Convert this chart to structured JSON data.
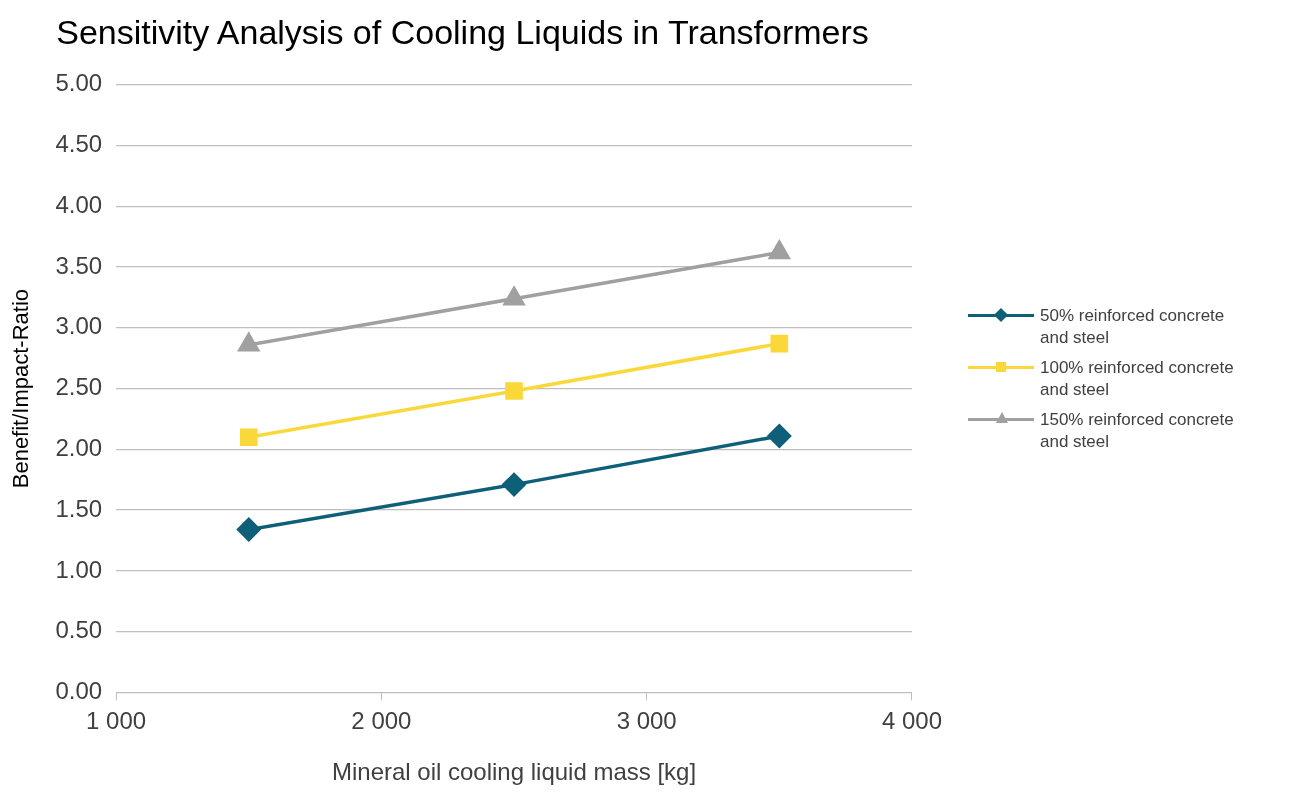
{
  "chart_data": {
    "type": "line",
    "title": "Sensitivity Analysis of Cooling Liquids in Transformers",
    "xlabel": "Mineral oil cooling liquid mass [kg]",
    "ylabel": "Benefit/Impact-Ratio",
    "x": [
      1500,
      2500,
      3500
    ],
    "series": [
      {
        "name": "50% reinforced concrete and steel",
        "color": "#0e5f78",
        "marker": "diamond",
        "values": [
          1.34,
          1.71,
          2.11
        ]
      },
      {
        "name": "100% reinforced concrete and steel",
        "color": "#fbd83a",
        "marker": "square",
        "values": [
          2.1,
          2.48,
          2.87
        ]
      },
      {
        "name": "150% reinforced concrete and steel",
        "color": "#a0a0a0",
        "marker": "triangle",
        "values": [
          2.86,
          3.24,
          3.62
        ]
      }
    ],
    "xlim": [
      1000,
      4000
    ],
    "xticks": [
      {
        "value": 1000,
        "label": "1 000"
      },
      {
        "value": 2000,
        "label": "2 000"
      },
      {
        "value": 3000,
        "label": "3 000"
      },
      {
        "value": 4000,
        "label": "4 000"
      }
    ],
    "ylim": [
      0,
      5
    ],
    "yticks": [
      {
        "value": 0,
        "label": "0.00"
      },
      {
        "value": 0.5,
        "label": "0.50"
      },
      {
        "value": 1,
        "label": "1.00"
      },
      {
        "value": 1.5,
        "label": "1.50"
      },
      {
        "value": 2,
        "label": "2.00"
      },
      {
        "value": 2.5,
        "label": "2.50"
      },
      {
        "value": 3,
        "label": "3.00"
      },
      {
        "value": 3.5,
        "label": "3.50"
      },
      {
        "value": 4,
        "label": "4.00"
      },
      {
        "value": 4.5,
        "label": "4.50"
      },
      {
        "value": 5,
        "label": "5.00"
      }
    ],
    "grid": "y",
    "legend": "right",
    "line_style": "solid"
  }
}
